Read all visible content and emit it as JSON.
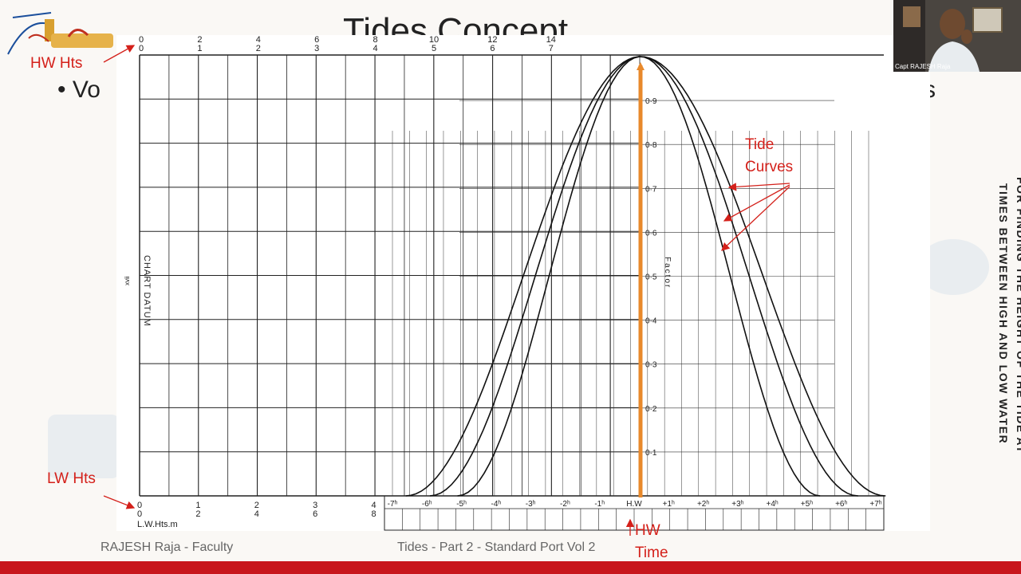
{
  "slide": {
    "title": "Tides Concept",
    "bullet_start": "Vo",
    "bullet_end": "s",
    "footer_left": "RAJESH Raja - Faculty",
    "footer_center": "Tides - Part 2 - Standard Port Vol 2",
    "bar_color": "#c8161d"
  },
  "annotations": {
    "hw_hts": "HW Hts",
    "lw_hts": "LW Hts",
    "tide_curves_line1": "Tide",
    "tide_curves_line2": "Curves",
    "hw_time_line1": "HW",
    "hw_time_line2": "Time",
    "color": "#d4201a"
  },
  "chart": {
    "side_text_line1": "FOR FINDING THE HEIGHT OF THE TIDE AT",
    "side_text_line2": "TIMES BETWEEN HIGH AND LOW WATER",
    "chart_datum": "CHART DATUM",
    "page_num": "xvii",
    "factor_label": "Factor",
    "lw_hts_label": "L.W.Hts.m",
    "top_scale_top": [
      "0",
      "2",
      "4",
      "6",
      "8",
      "10",
      "12",
      "14"
    ],
    "top_scale_bottom": [
      "0",
      "1",
      "2",
      "3",
      "4",
      "5",
      "6",
      "7"
    ],
    "bottom_scale_top": [
      "0",
      "1",
      "2",
      "3",
      "4"
    ],
    "bottom_scale_bottom": [
      "0",
      "2",
      "4",
      "6",
      "8"
    ],
    "time_labels": [
      "-7ʰ",
      "-6ʰ",
      "-5ʰ",
      "-4ʰ",
      "-3ʰ",
      "-2ʰ",
      "-1ʰ",
      "H.W",
      "+1ʰ",
      "+2ʰ",
      "+3ʰ",
      "+4ʰ",
      "+5ʰ",
      "+6ʰ",
      "+7ʰ"
    ],
    "factor_ticks": [
      "0·9",
      "0·8",
      "0·7",
      "0·6",
      "0·5",
      "0·4",
      "0·3",
      "0·2",
      "0·1"
    ],
    "hw_line_color": "#e8892b"
  },
  "webcam": {
    "name": "Capt RAJESH Raja"
  }
}
